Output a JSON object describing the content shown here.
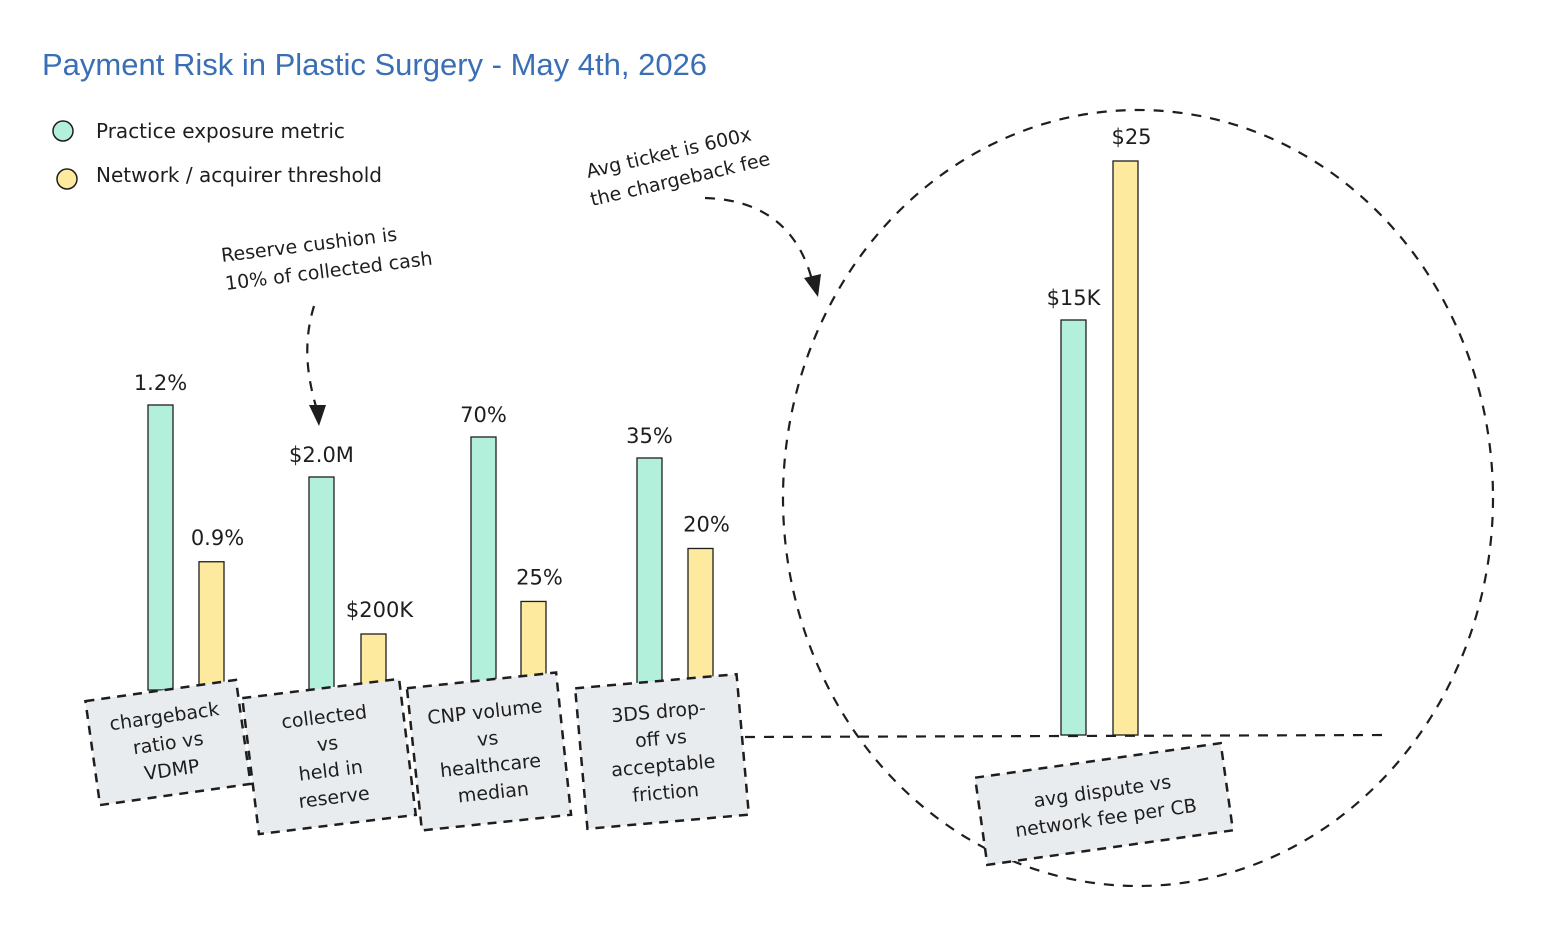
{
  "title": "Payment Risk in Plastic Surgery - May 4th, 2026",
  "legend": [
    {
      "label": "Practice exposure metric",
      "color": "#b2f0dc"
    },
    {
      "label": "Network / acquirer threshold",
      "color": "#fdea9e"
    }
  ],
  "annotations": {
    "reserve": [
      "Reserve cushion is",
      "10% of collected cash"
    ],
    "ticket": [
      "Avg ticket is 600x",
      "the chargeback fee"
    ]
  },
  "chart_data": {
    "type": "bar",
    "categories": [
      "chargeback ratio vs VDMP",
      "collected vs held in reserve",
      "CNP volume vs healthcare median",
      "3DS drop-off vs acceptable friction",
      "avg dispute vs network fee per CB"
    ],
    "category_labels": [
      [
        "chargeback",
        "ratio vs",
        "VDMP"
      ],
      [
        "collected",
        "vs",
        "held in",
        "reserve"
      ],
      [
        "CNP volume",
        "vs",
        "healthcare",
        "median"
      ],
      [
        "3DS drop-",
        "off vs",
        "acceptable",
        "friction"
      ],
      [
        "avg dispute vs",
        "network fee per CB"
      ]
    ],
    "series": [
      {
        "name": "Practice exposure metric",
        "color": "#b2f0dc",
        "values": [
          1.2,
          2000000,
          70,
          35,
          15000
        ],
        "labels": [
          "1.2%",
          "$2.0M",
          "70%",
          "35%",
          "$15K"
        ]
      },
      {
        "name": "Network / acquirer threshold",
        "color": "#fdea9e",
        "values": [
          0.9,
          200000,
          25,
          20,
          25
        ],
        "labels": [
          "0.9%",
          "$200K",
          "25%",
          "20%",
          "$25"
        ]
      }
    ],
    "legend_position": "top-left",
    "grid": false
  }
}
